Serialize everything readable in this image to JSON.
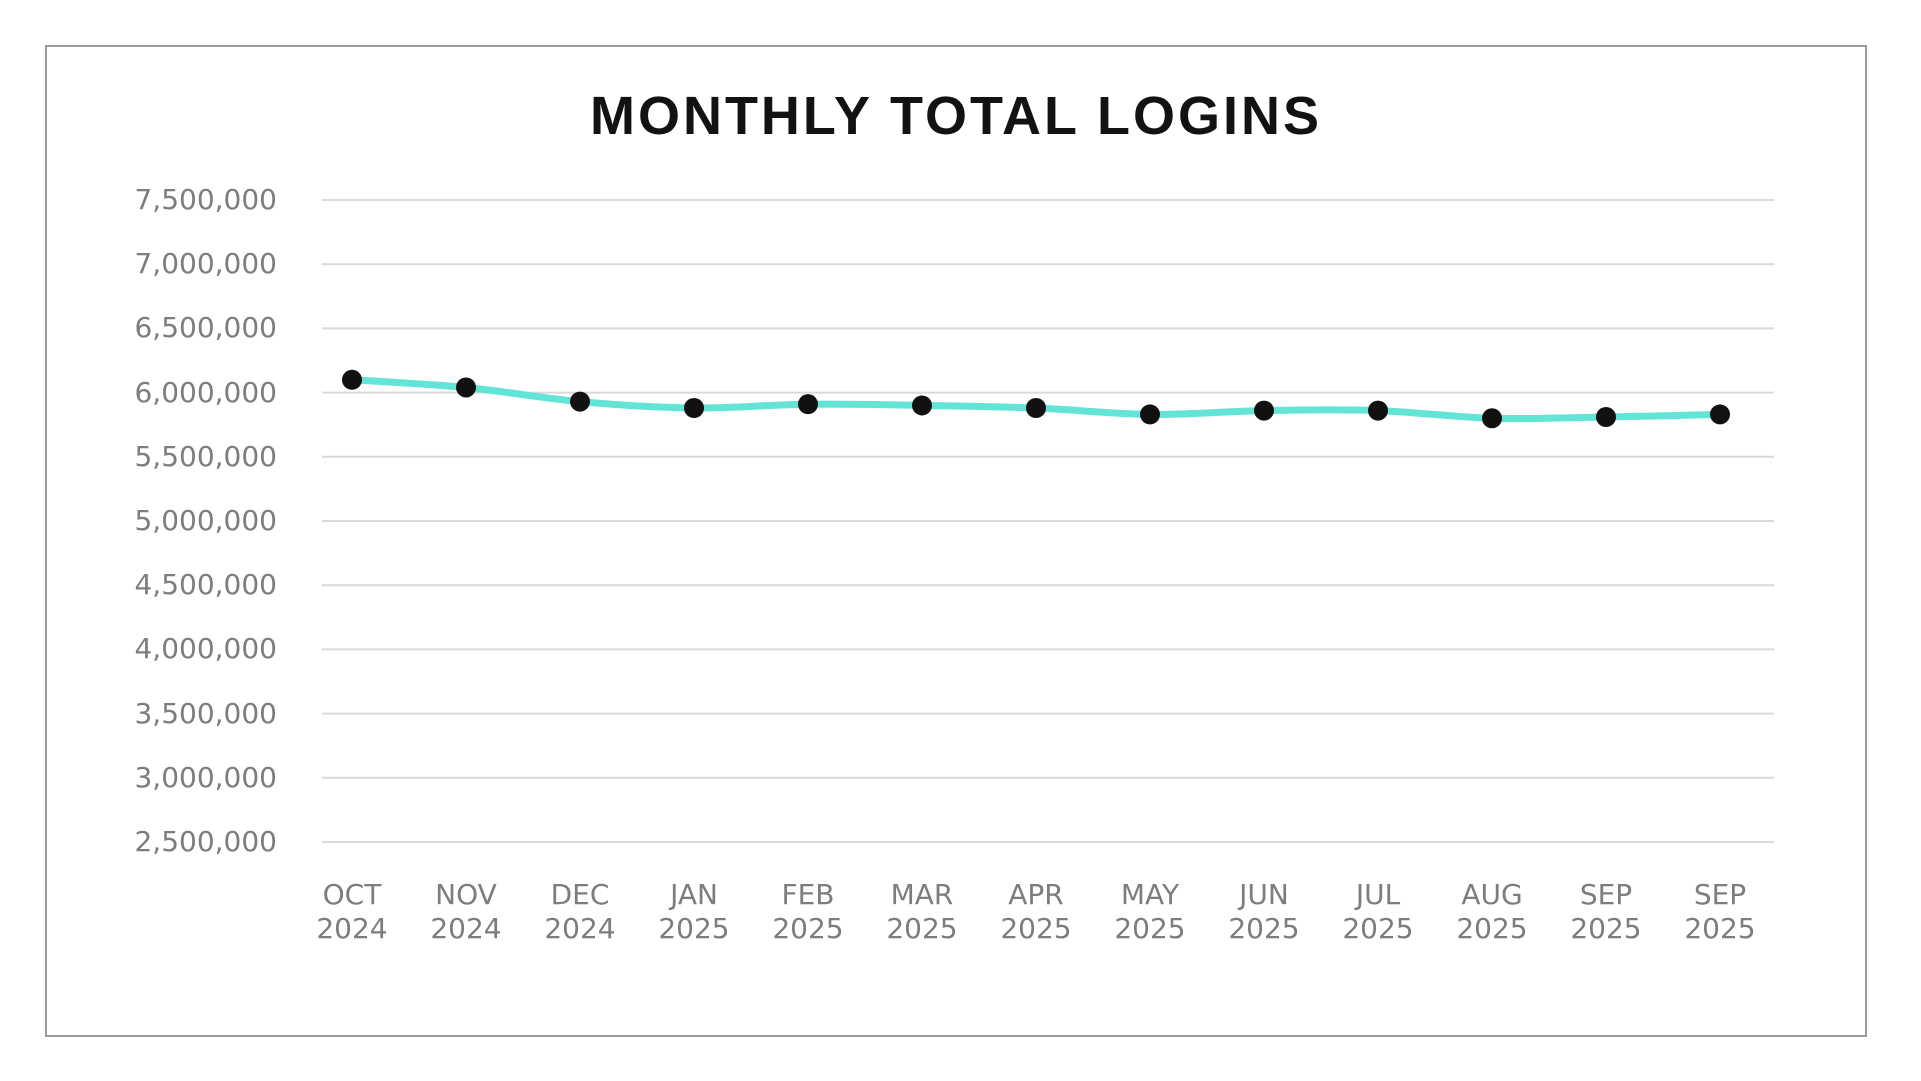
{
  "chart_data": {
    "type": "line",
    "title": "MONTHLY TOTAL LOGINS",
    "categories": [
      {
        "month": "OCT",
        "year": "2024"
      },
      {
        "month": "NOV",
        "year": "2024"
      },
      {
        "month": "DEC",
        "year": "2024"
      },
      {
        "month": "JAN",
        "year": "2025"
      },
      {
        "month": "FEB",
        "year": "2025"
      },
      {
        "month": "MAR",
        "year": "2025"
      },
      {
        "month": "APR",
        "year": "2025"
      },
      {
        "month": "MAY",
        "year": "2025"
      },
      {
        "month": "JUN",
        "year": "2025"
      },
      {
        "month": "JUL",
        "year": "2025"
      },
      {
        "month": "AUG",
        "year": "2025"
      },
      {
        "month": "SEP",
        "year": "2025"
      },
      {
        "month": "SEP",
        "year": "2025"
      }
    ],
    "values": [
      6100000,
      6040000,
      5930000,
      5880000,
      5910000,
      5900000,
      5880000,
      5830000,
      5860000,
      5860000,
      5800000,
      5810000,
      5830000
    ],
    "ylim": [
      2500000,
      7500000
    ],
    "ytick_step": 500000,
    "ytick_labels": [
      "7,500,000",
      "7,000,000",
      "6,500,000",
      "6,000,000",
      "5,500,000",
      "5,000,000",
      "4,500,000",
      "4,000,000",
      "3,500,000",
      "3,000,000",
      "2,500,000"
    ],
    "xlabel": "",
    "ylabel": "",
    "grid": "horizontal",
    "legend": "none",
    "colors": {
      "line": "#62e4d6",
      "points": "#111111",
      "gridlines": "#d9d9d9",
      "axis_labels": "#7d7d7d",
      "title": "#121212",
      "card_border": "#9b9b9b",
      "background": "#ffffff"
    }
  }
}
